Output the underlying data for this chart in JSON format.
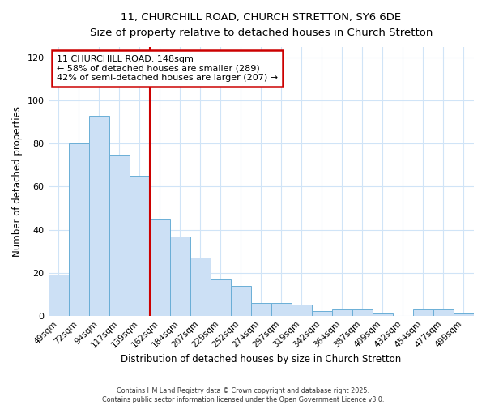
{
  "title_line1": "11, CHURCHILL ROAD, CHURCH STRETTON, SY6 6DE",
  "title_line2": "Size of property relative to detached houses in Church Stretton",
  "xlabel": "Distribution of detached houses by size in Church Stretton",
  "ylabel": "Number of detached properties",
  "categories": [
    "49sqm",
    "72sqm",
    "94sqm",
    "117sqm",
    "139sqm",
    "162sqm",
    "184sqm",
    "207sqm",
    "229sqm",
    "252sqm",
    "274sqm",
    "297sqm",
    "319sqm",
    "342sqm",
    "364sqm",
    "387sqm",
    "409sqm",
    "432sqm",
    "454sqm",
    "477sqm",
    "499sqm"
  ],
  "values": [
    19,
    80,
    93,
    75,
    65,
    45,
    37,
    27,
    17,
    14,
    6,
    6,
    5,
    2,
    3,
    3,
    1,
    0,
    3,
    3,
    1
  ],
  "bar_color": "#cce0f5",
  "bar_edge_color": "#6aaed6",
  "property_line_x": 4.5,
  "annotation_line1": "11 CHURCHILL ROAD: 148sqm",
  "annotation_line2": "← 58% of detached houses are smaller (289)",
  "annotation_line3": "42% of semi-detached houses are larger (207) →",
  "annotation_box_color": "#ffffff",
  "annotation_box_edge_color": "#cc0000",
  "vline_color": "#cc0000",
  "ylim": [
    0,
    125
  ],
  "yticks": [
    0,
    20,
    40,
    60,
    80,
    100,
    120
  ],
  "footer_line1": "Contains HM Land Registry data © Crown copyright and database right 2025.",
  "footer_line2": "Contains public sector information licensed under the Open Government Licence v3.0.",
  "background_color": "#ffffff",
  "plot_background_color": "#ffffff",
  "grid_color": "#d0e4f7"
}
